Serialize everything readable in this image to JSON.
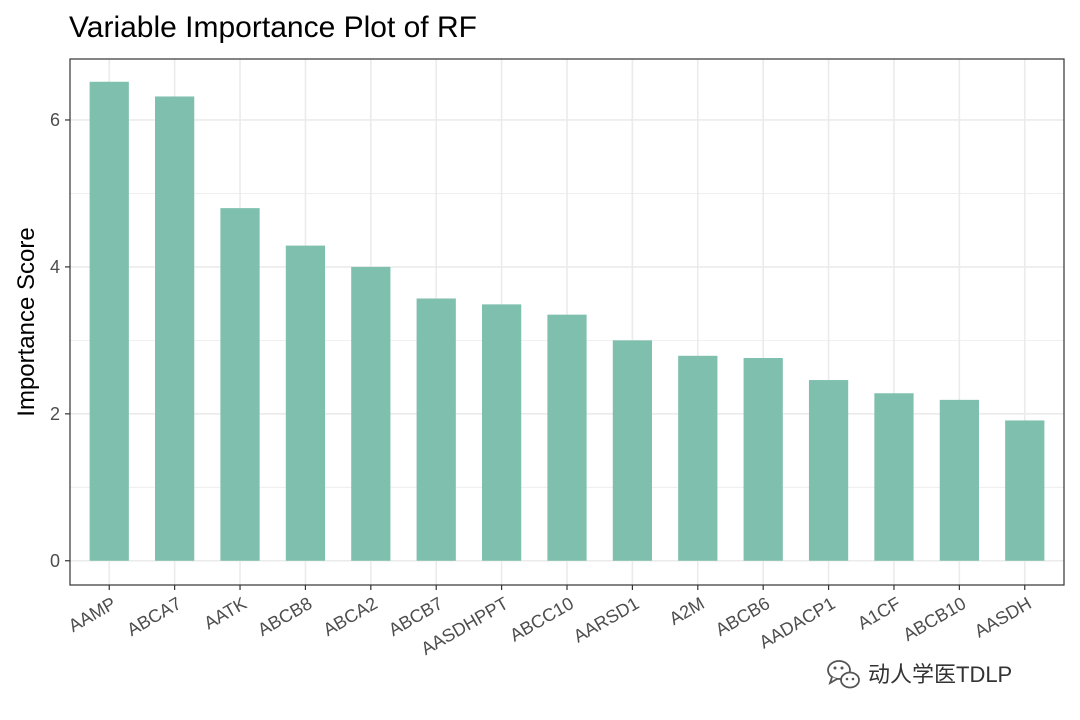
{
  "chart_data": {
    "type": "bar",
    "title": "Variable Importance Plot of RF",
    "xlabel": "",
    "ylabel": "Importance Score",
    "categories": [
      "AAMP",
      "ABCA7",
      "AATK",
      "ABCB8",
      "ABCA2",
      "ABCB7",
      "AASDHPPT",
      "ABCC10",
      "AARSD1",
      "A2M",
      "ABCB6",
      "AADACP1",
      "A1CF",
      "ABCB10",
      "AASDH"
    ],
    "values": [
      6.52,
      6.32,
      4.8,
      4.29,
      4.0,
      3.57,
      3.49,
      3.35,
      3.0,
      2.79,
      2.76,
      2.46,
      2.28,
      2.19,
      1.91
    ],
    "yticks": [
      0,
      2,
      4,
      6
    ],
    "ylim": [
      -0.33,
      6.83
    ],
    "grid": true,
    "legend": "none",
    "bar_color": "#7fbfad",
    "grid_color": "#ebebeb",
    "panel_border_color": "#333333"
  },
  "watermark": {
    "icon": "wechat-icon",
    "text": "动人学医TDLP"
  }
}
